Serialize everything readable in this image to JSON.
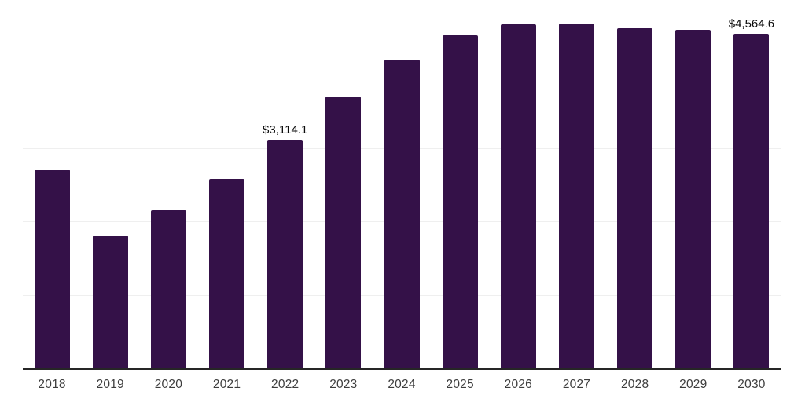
{
  "chart": {
    "background": "#ffffff",
    "bar_color": "#341148",
    "axis_line_color": "#262626",
    "gridline_color": "#efefef",
    "tick_label_color": "#3d3d3d",
    "data_label_color": "#0a0a0a"
  },
  "chart_data": {
    "type": "bar",
    "title": "",
    "xlabel": "",
    "ylabel": "",
    "categories": [
      "2018",
      "2019",
      "2020",
      "2021",
      "2022",
      "2023",
      "2024",
      "2025",
      "2026",
      "2027",
      "2028",
      "2029",
      "2030"
    ],
    "values": [
      2705,
      1810,
      2150,
      2580,
      3114.1,
      3705,
      4205,
      4540,
      4690,
      4700,
      4635,
      4615,
      4564.6
    ],
    "data_labels": [
      {
        "category": "2022",
        "text": "$3,114.1"
      },
      {
        "category": "2030",
        "text": "$4,564.6"
      }
    ],
    "ylim": [
      0,
      5000
    ],
    "gridline_step": 1000,
    "grid": "horizontal",
    "legend": "none",
    "y_axis_ticks_visible": false
  }
}
